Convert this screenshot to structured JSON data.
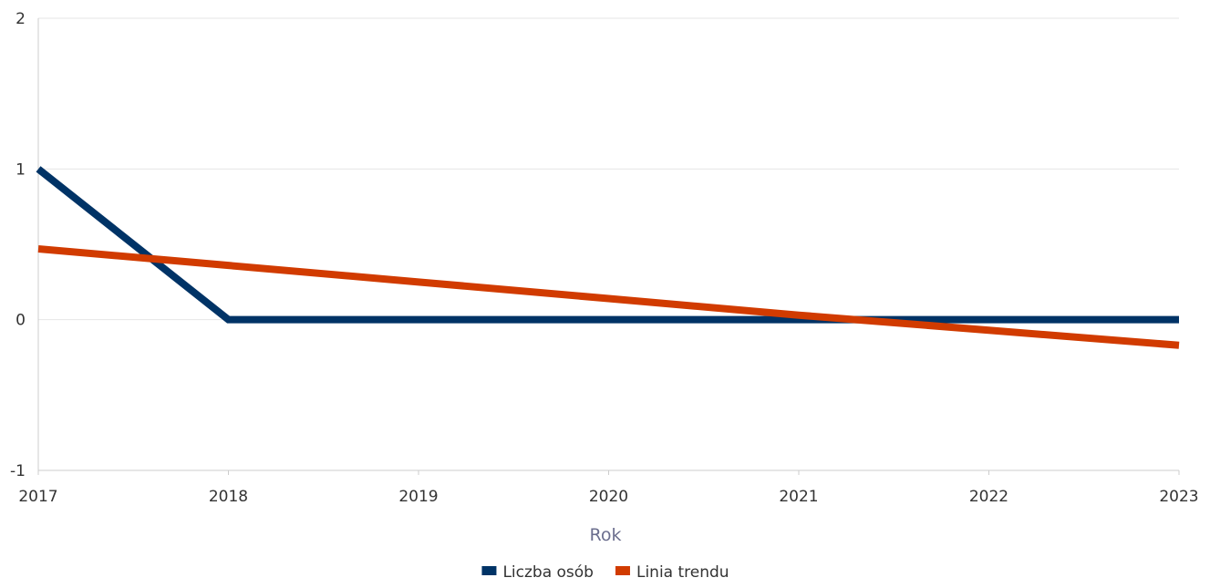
{
  "chart_data": {
    "type": "line",
    "xlabel": "Rok",
    "ylabel": "",
    "x": [
      2017,
      2018,
      2019,
      2020,
      2021,
      2022,
      2023
    ],
    "xlim": [
      2017,
      2023
    ],
    "ylim": [
      -1,
      2
    ],
    "y_ticks": [
      2,
      1,
      0,
      -1
    ],
    "x_ticks": [
      2017,
      2018,
      2019,
      2020,
      2021,
      2022,
      2023
    ],
    "grid": true,
    "legend_position": "bottom",
    "series": [
      {
        "name": "Liczba osób",
        "color": "#003366",
        "values": [
          1,
          0,
          0,
          0,
          0,
          0,
          0
        ]
      },
      {
        "name": "Linia trendu",
        "color": "#D13B00",
        "values": [
          0.47,
          0.36,
          0.25,
          0.14,
          0.03,
          -0.07,
          -0.17
        ]
      }
    ],
    "axis_title_color": "#6B6E8E",
    "grid_color": "#E6E6E6",
    "axis_color": "#CCCCCC"
  }
}
